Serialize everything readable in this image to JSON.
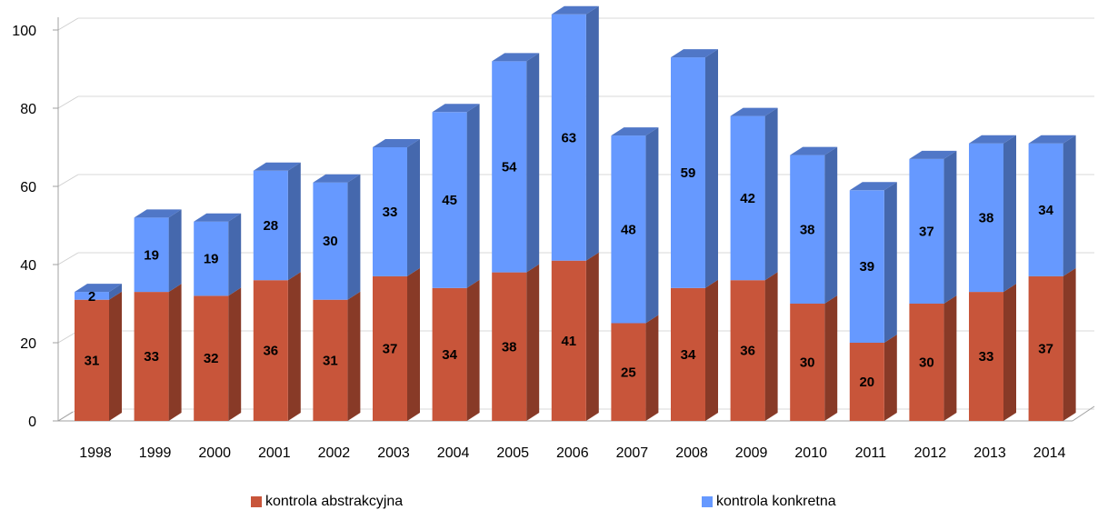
{
  "chart_data": {
    "type": "bar",
    "stacked": true,
    "style": "3d",
    "categories": [
      "1998",
      "1999",
      "2000",
      "2001",
      "2002",
      "2003",
      "2004",
      "2005",
      "2006",
      "2007",
      "2008",
      "2009",
      "2010",
      "2011",
      "2012",
      "2013",
      "2014"
    ],
    "series": [
      {
        "name": "kontrola abstrakcyjna",
        "color": "#C8553A",
        "values": [
          31,
          33,
          32,
          36,
          31,
          37,
          34,
          38,
          41,
          25,
          34,
          36,
          30,
          20,
          30,
          33,
          37
        ]
      },
      {
        "name": "kontrola konkretna",
        "color": "#6699FF",
        "values": [
          2,
          19,
          19,
          28,
          30,
          33,
          45,
          54,
          63,
          48,
          59,
          42,
          38,
          39,
          37,
          38,
          34
        ]
      }
    ],
    "ylim": [
      0,
      100
    ],
    "yticks": [
      "0",
      "20",
      "40",
      "60",
      "80",
      "100"
    ],
    "grid": true,
    "data_labels": true,
    "legend_position": "bottom"
  }
}
